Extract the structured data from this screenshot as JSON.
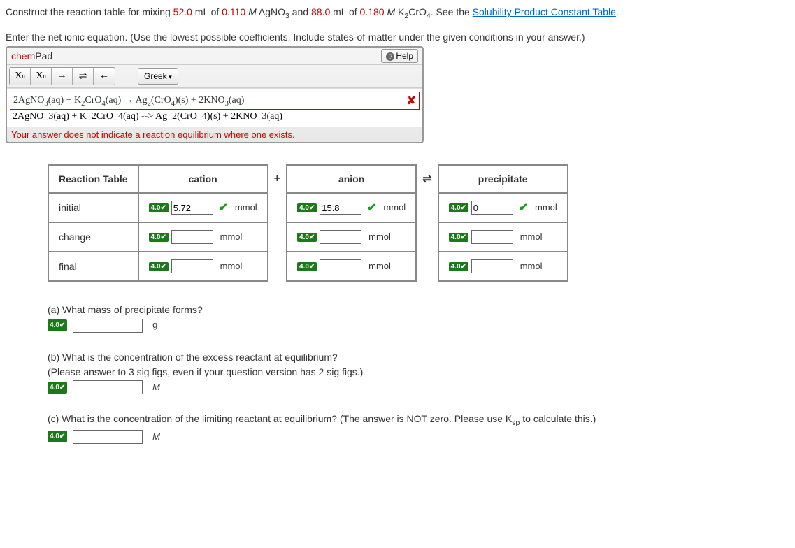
{
  "question": {
    "intro_parts": [
      "Construct the reaction table for mixing ",
      "52.0",
      " mL of ",
      "0.110",
      " ",
      "M",
      " AgNO",
      "3",
      " and ",
      "88.0",
      " mL of ",
      "0.180",
      " ",
      "M",
      " K",
      "2",
      "CrO",
      "4",
      ". See the ",
      "Solubility Product Constant Table",
      "."
    ],
    "instruction": "Enter the net ionic equation. (Use the lowest possible coefficients. Include states-of-matter under the given conditions in your answer.)"
  },
  "chempad": {
    "title_chem": "chem",
    "title_pad": "Pad",
    "help_label": "Help",
    "greek_label": "Greek",
    "formula_html": "2AgNO<sub>3</sub>(aq) + K<sub>2</sub>CrO<sub>4</sub>(aq)  →  Ag<sub>2</sub>(CrO<sub>4</sub>)(s) + 2KNO<sub>3</sub>(aq)",
    "raw_text": "2AgNO_3(aq) + K_2CrO_4(aq) --> Ag_2(CrO_4)(s) + 2KNO_3(aq)",
    "feedback": "Your answer does not indicate a reaction equilibrium where one exists."
  },
  "table": {
    "header_reaction": "Reaction Table",
    "header_cation": "cation",
    "header_plus": "+",
    "header_anion": "anion",
    "header_equil": "⇌",
    "header_precip": "precipitate",
    "row_initial": "initial",
    "row_change": "change",
    "row_final": "final",
    "badge": "4.0",
    "check": "✔",
    "unit": "mmol",
    "initial_cation": "5.72",
    "initial_anion": "15.8",
    "initial_precip": "0",
    "change_cation": "",
    "change_anion": "",
    "change_precip": "",
    "final_cation": "",
    "final_anion": "",
    "final_precip": ""
  },
  "subq": {
    "a_text": "(a) What mass of precipitate forms?",
    "a_unit": "g",
    "a_value": "",
    "b_text1": "(b) What is the concentration of the excess reactant at equilibrium?",
    "b_text2": "(Please answer to 3 sig figs, even if your question version has 2 sig figs.)",
    "b_unit": "M",
    "b_value": "",
    "c_text_parts": [
      "(c) What is the concentration of the limiting reactant at equilibrium? (The answer is NOT zero. Please use K",
      "sp",
      " to calculate this.)"
    ],
    "c_unit": "M",
    "c_value": "",
    "badge": "4.0",
    "check": "✔"
  }
}
